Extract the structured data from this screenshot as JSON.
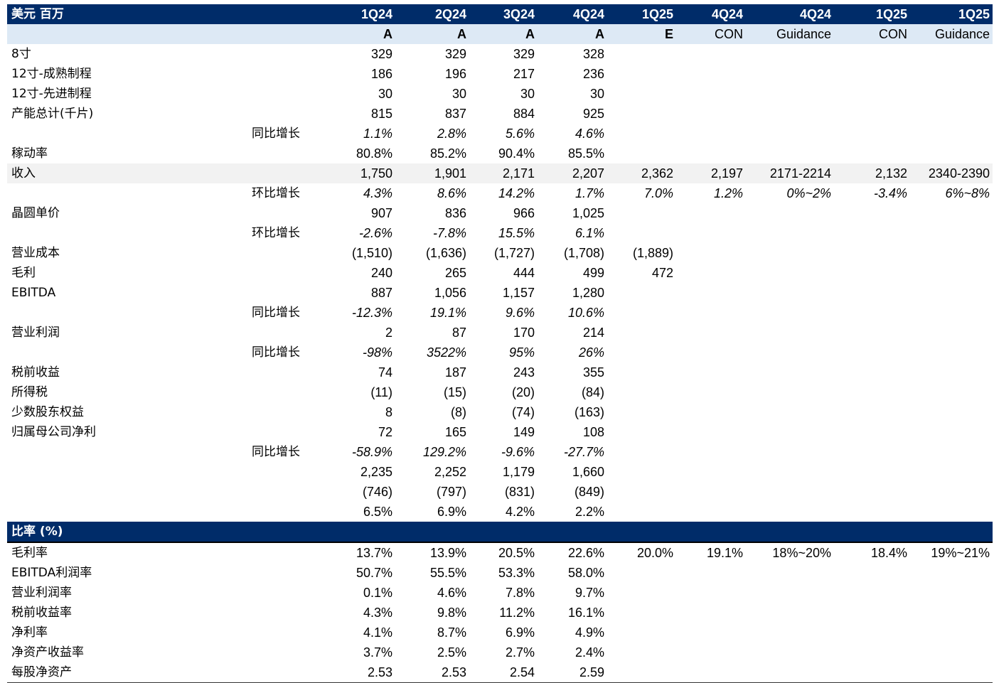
{
  "header": {
    "unit_label": "美元 百万",
    "quarters": [
      "1Q24",
      "2Q24",
      "3Q24",
      "4Q24",
      "1Q25",
      "4Q24",
      "4Q24",
      "1Q25",
      "1Q25"
    ],
    "types": [
      "A",
      "A",
      "A",
      "A",
      "E",
      "CON",
      "Guidance",
      "CON",
      "Guidance"
    ]
  },
  "rows": [
    {
      "label": "8寸",
      "sub": "",
      "values": [
        "329",
        "329",
        "329",
        "328",
        "",
        "",
        "",
        "",
        ""
      ]
    },
    {
      "label": "12寸-成熟制程",
      "sub": "",
      "values": [
        "186",
        "196",
        "217",
        "236",
        "",
        "",
        "",
        "",
        ""
      ]
    },
    {
      "label": "12寸-先进制程",
      "sub": "",
      "values": [
        "30",
        "30",
        "30",
        "30",
        "",
        "",
        "",
        "",
        ""
      ]
    },
    {
      "label": "产能总计(千片)",
      "sub": "",
      "values": [
        "815",
        "837",
        "884",
        "925",
        "",
        "",
        "",
        "",
        ""
      ]
    },
    {
      "label": "",
      "sub": "同比增长",
      "values": [
        "1.1%",
        "2.8%",
        "5.6%",
        "4.6%",
        "",
        "",
        "",
        "",
        ""
      ]
    },
    {
      "label": "稼动率",
      "sub": "",
      "values": [
        "80.8%",
        "85.2%",
        "90.4%",
        "85.5%",
        "",
        "",
        "",
        "",
        ""
      ]
    },
    {
      "label": "收入",
      "sub": "",
      "values": [
        "1,750",
        "1,901",
        "2,171",
        "2,207",
        "2,362",
        "2,197",
        "2171-2214",
        "2,132",
        "2340-2390"
      ]
    },
    {
      "label": "",
      "sub": "环比增长",
      "values": [
        "4.3%",
        "8.6%",
        "14.2%",
        "1.7%",
        "7.0%",
        "1.2%",
        "0%~2%",
        "-3.4%",
        "6%~8%"
      ]
    },
    {
      "label": "晶圆单价",
      "sub": "",
      "values": [
        "907",
        "836",
        "966",
        "1,025",
        "",
        "",
        "",
        "",
        ""
      ]
    },
    {
      "label": "",
      "sub": "环比增长",
      "values": [
        "-2.6%",
        "-7.8%",
        "15.5%",
        "6.1%",
        "",
        "",
        "",
        "",
        ""
      ]
    },
    {
      "label": "营业成本",
      "sub": "",
      "values": [
        "(1,510)",
        "(1,636)",
        "(1,727)",
        "(1,708)",
        "(1,889)",
        "",
        "",
        "",
        ""
      ]
    },
    {
      "label": "毛利",
      "sub": "",
      "values": [
        "240",
        "265",
        "444",
        "499",
        "472",
        "",
        "",
        "",
        ""
      ]
    },
    {
      "label": "EBITDA",
      "sub": "",
      "values": [
        "887",
        "1,056",
        "1,157",
        "1,280",
        "",
        "",
        "",
        "",
        ""
      ]
    },
    {
      "label": "",
      "sub": "同比增长",
      "values": [
        "-12.3%",
        "19.1%",
        "9.6%",
        "10.6%",
        "",
        "",
        "",
        "",
        ""
      ]
    },
    {
      "label": "营业利润",
      "sub": "",
      "values": [
        "2",
        "87",
        "170",
        "214",
        "",
        "",
        "",
        "",
        ""
      ]
    },
    {
      "label": "",
      "sub": "同比增长",
      "values": [
        "-98%",
        "3522%",
        "95%",
        "26%",
        "",
        "",
        "",
        "",
        ""
      ]
    },
    {
      "label": "税前收益",
      "sub": "",
      "values": [
        "74",
        "187",
        "243",
        "355",
        "",
        "",
        "",
        "",
        ""
      ]
    },
    {
      "label": "所得税",
      "sub": "",
      "values": [
        "(11)",
        "(15)",
        "(20)",
        "(84)",
        "",
        "",
        "",
        "",
        ""
      ]
    },
    {
      "label": "少数股东权益",
      "sub": "",
      "values": [
        "8",
        "(8)",
        "(74)",
        "(163)",
        "",
        "",
        "",
        "",
        ""
      ]
    },
    {
      "label": "归属母公司净利",
      "sub": "",
      "values": [
        "72",
        "165",
        "149",
        "108",
        "",
        "",
        "",
        "",
        ""
      ]
    },
    {
      "label": "",
      "sub": "同比增长",
      "values": [
        "-58.9%",
        "129.2%",
        "-9.6%",
        "-27.7%",
        "",
        "",
        "",
        "",
        ""
      ]
    },
    {
      "label": "",
      "sub": "",
      "values": [
        "2,235",
        "2,252",
        "1,179",
        "1,660",
        "",
        "",
        "",
        "",
        ""
      ]
    },
    {
      "label": "",
      "sub": "",
      "values": [
        "(746)",
        "(797)",
        "(831)",
        "(849)",
        "",
        "",
        "",
        "",
        ""
      ]
    },
    {
      "label": "",
      "sub": "",
      "values": [
        "6.5%",
        "6.9%",
        "4.2%",
        "2.2%",
        "",
        "",
        "",
        "",
        ""
      ]
    }
  ],
  "ratios_section": {
    "title": "比率 (%)",
    "rows": [
      {
        "label": "毛利率",
        "values": [
          "13.7%",
          "13.9%",
          "20.5%",
          "22.6%",
          "20.0%",
          "19.1%",
          "18%~20%",
          "18.4%",
          "19%~21%"
        ]
      },
      {
        "label": "EBITDA利润率",
        "values": [
          "50.7%",
          "55.5%",
          "53.3%",
          "58.0%",
          "",
          "",
          "",
          "",
          ""
        ]
      },
      {
        "label": "营业利润率",
        "values": [
          "0.1%",
          "4.6%",
          "7.8%",
          "9.7%",
          "",
          "",
          "",
          "",
          ""
        ]
      },
      {
        "label": "税前收益率",
        "values": [
          "4.3%",
          "9.8%",
          "11.2%",
          "16.1%",
          "",
          "",
          "",
          "",
          ""
        ]
      },
      {
        "label": "净利率",
        "values": [
          "4.1%",
          "8.7%",
          "6.9%",
          "4.9%",
          "",
          "",
          "",
          "",
          ""
        ]
      },
      {
        "label": "净资产收益率",
        "values": [
          "3.7%",
          "2.5%",
          "2.7%",
          "2.4%",
          "",
          "",
          "",
          "",
          ""
        ]
      },
      {
        "label": "每股净资产",
        "values": [
          "2.53",
          "2.53",
          "2.54",
          "2.59",
          "",
          "",
          "",
          "",
          ""
        ]
      }
    ]
  }
}
